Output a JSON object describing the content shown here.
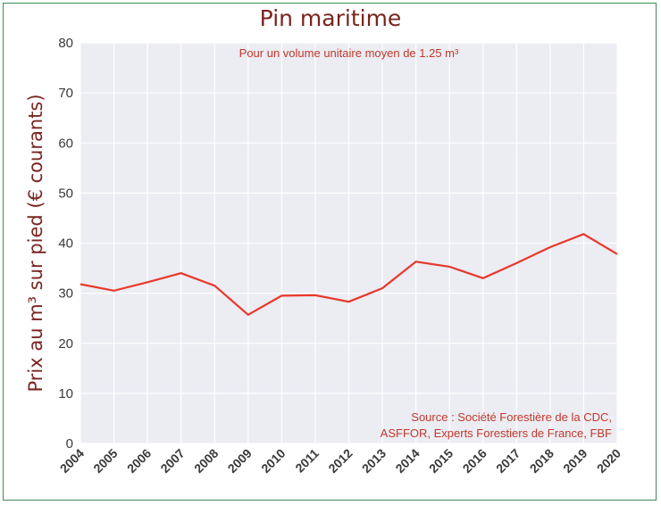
{
  "chart_data": {
    "type": "line",
    "title": "Pin maritime",
    "subtitle": "Pour un volume unitaire moyen de 1.25 m³",
    "ylabel": "Prix au m³ sur pied (€ courants)",
    "xlabel": "",
    "x": [
      "2004",
      "2005",
      "2006",
      "2007",
      "2008",
      "2009",
      "2010",
      "2011",
      "2012",
      "2013",
      "2014",
      "2015",
      "2016",
      "2017",
      "2018",
      "2019",
      "2020"
    ],
    "series": [
      {
        "values": [
          31.8,
          30.5,
          32.2,
          34.0,
          31.5,
          25.7,
          29.5,
          29.6,
          28.3,
          31.0,
          36.3,
          35.3,
          33.0,
          36.0,
          39.2,
          41.8,
          37.8
        ]
      }
    ],
    "ylim": [
      0,
      80
    ],
    "yticks": [
      "0",
      "10",
      "20",
      "30",
      "40",
      "50",
      "60",
      "70",
      "80"
    ],
    "grid": true,
    "line_color": "#e8382b",
    "source_lines": [
      "Source : Société Forestière de la CDC,",
      "ASFFOR, Experts Forestiers de France, FBF"
    ]
  }
}
